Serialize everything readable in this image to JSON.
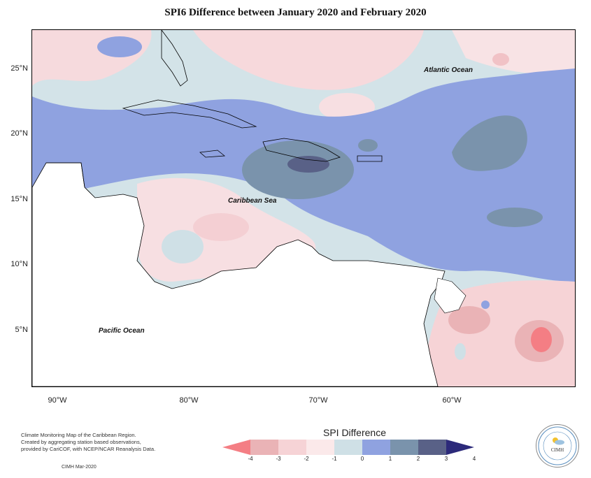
{
  "title": "SPI6 Difference between January 2020 and February 2020",
  "map": {
    "type": "choropleth",
    "region": "Caribbean",
    "lat_range": [
      1.5,
      28
    ],
    "lon_range": [
      -92,
      -52
    ],
    "lat_ticks": [
      "25°N",
      "20°N",
      "15°N",
      "10°N",
      "5°N"
    ],
    "lon_ticks": [
      "90°W",
      "80°W",
      "70°W",
      "60°W"
    ],
    "ocean_labels": {
      "atlantic": "Atlantic Ocean",
      "caribbean": "Caribbean Sea",
      "pacific": "Pacific Ocean"
    }
  },
  "legend": {
    "title": "SPI Difference",
    "ticks": [
      "-4",
      "-3",
      "-2",
      "-1",
      "0",
      "1",
      "2",
      "3",
      "4"
    ],
    "colors": [
      "#f47e84",
      "#eab3b6",
      "#f6d3d6",
      "#fbe9ea",
      "#cfe0e6",
      "#8fa2e0",
      "#7a93ac",
      "#596187",
      "#2c2a7a"
    ]
  },
  "footer": {
    "line1": "Climate Monitoring Map of the Caribbean Region.",
    "line2": "Created by aggregating station based observations,",
    "line3": "provided by CariCOF, with NCEP/NCAR Reanalysis Data.",
    "date": "CIMH Mar-2020"
  },
  "logo": {
    "text": "CIMH",
    "icon": "sun-cloud-icon"
  }
}
